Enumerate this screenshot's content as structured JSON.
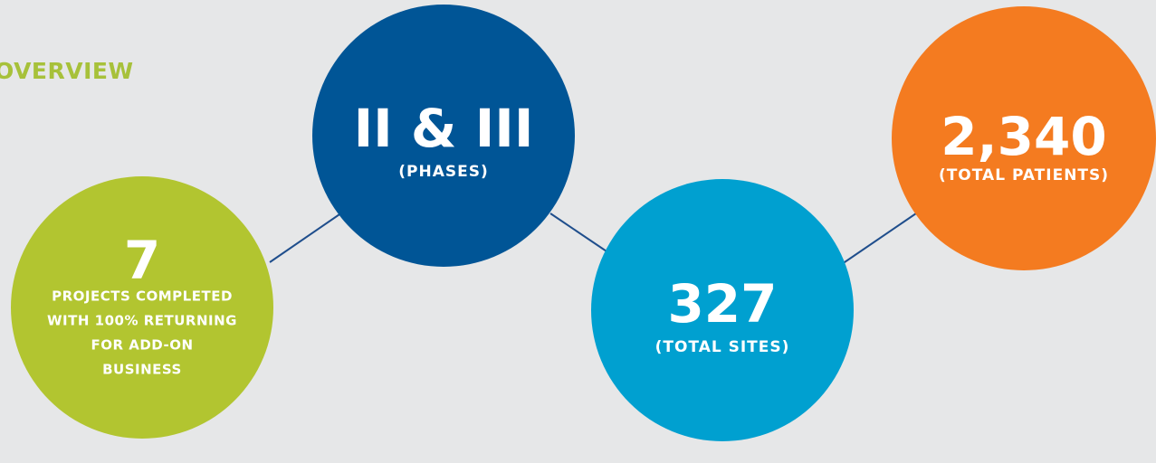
{
  "heading": "OVERVIEW",
  "circles": [
    {
      "value": "7",
      "label": [
        "PROJECTS COMPLETED",
        "WITH 100% RETURNING",
        "FOR ADD-ON",
        "BUSINESS"
      ]
    },
    {
      "value": "II & III",
      "label": [
        "(PHASES)"
      ]
    },
    {
      "value": "327",
      "label": [
        "(TOTAL SITES)"
      ]
    },
    {
      "value": "2,340",
      "label": [
        "(TOTAL PATIENTS)"
      ]
    }
  ]
}
